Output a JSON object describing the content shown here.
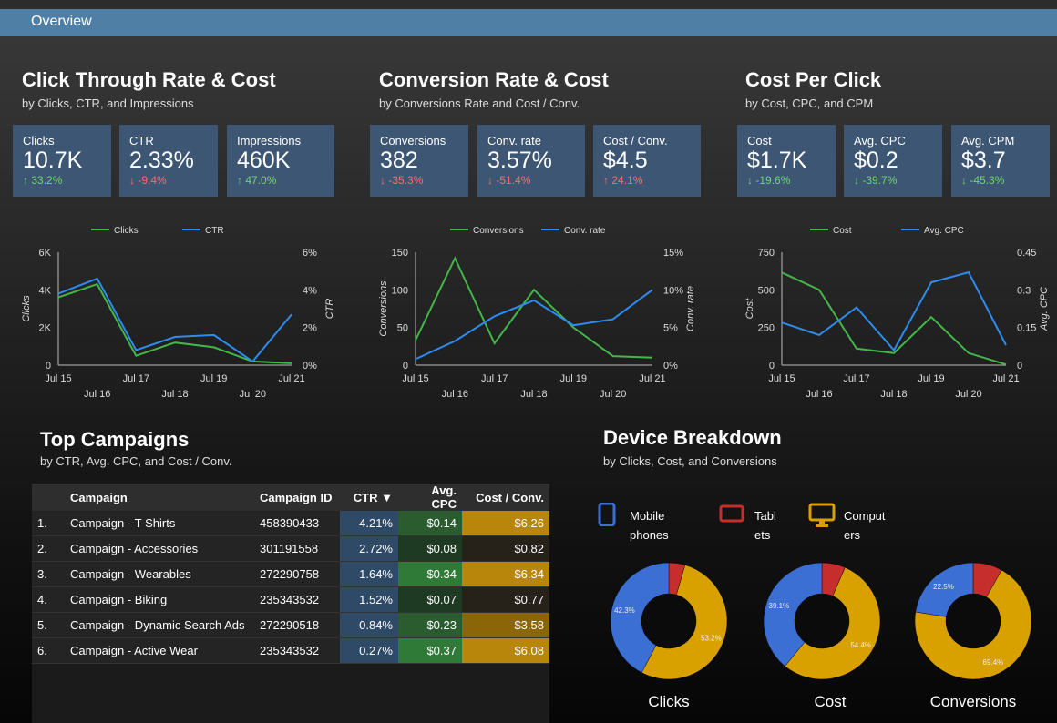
{
  "nav": {
    "title": "Overview"
  },
  "sections": {
    "ctr": {
      "title": "Click Through Rate & Cost",
      "subtitle": "by Clicks, CTR, and Impressions"
    },
    "conv": {
      "title": "Conversion Rate & Cost",
      "subtitle": "by Conversions Rate and Cost / Conv."
    },
    "cpc": {
      "title": "Cost Per Click",
      "subtitle": "by Cost, CPC, and CPM"
    },
    "campaigns": {
      "title": "Top Campaigns",
      "subtitle": "by CTR, Avg. CPC, and Cost / Conv."
    },
    "device": {
      "title": "Device Breakdown",
      "subtitle": "by Clicks, Cost, and Conversions"
    }
  },
  "kpis": [
    {
      "label": "Clicks",
      "value": "10.7K",
      "delta": "33.2%",
      "arrow": "↑",
      "dir": "up"
    },
    {
      "label": "CTR",
      "value": "2.33%",
      "delta": "-9.4%",
      "arrow": "↓",
      "dir": "down"
    },
    {
      "label": "Impressions",
      "value": "460K",
      "delta": "47.0%",
      "arrow": "↑",
      "dir": "up"
    },
    {
      "label": "Conversions",
      "value": "382",
      "delta": "-35.3%",
      "arrow": "↓",
      "dir": "down"
    },
    {
      "label": "Conv. rate",
      "value": "3.57%",
      "delta": "-51.4%",
      "arrow": "↓",
      "dir": "down"
    },
    {
      "label": "Cost / Conv.",
      "value": "$4.5",
      "delta": "24.1%",
      "arrow": "↑",
      "dir": "down"
    },
    {
      "label": "Cost",
      "value": "$1.7K",
      "delta": "-19.6%",
      "arrow": "↓",
      "dir": "up"
    },
    {
      "label": "Avg. CPC",
      "value": "$0.2",
      "delta": "-39.7%",
      "arrow": "↓",
      "dir": "up"
    },
    {
      "label": "Avg. CPM",
      "value": "$3.7",
      "delta": "-45.3%",
      "arrow": "↓",
      "dir": "up"
    }
  ],
  "colors": {
    "green": "#43b649",
    "blue": "#2d8cf0",
    "mobile": "#3b6fd3",
    "tablets": "#c62d2d",
    "computers": "#d9a100"
  },
  "chart_data": [
    {
      "type": "line",
      "legend": [
        "Clicks",
        "CTR"
      ],
      "x": [
        "Jul 15",
        "Jul 16",
        "Jul 17",
        "Jul 18",
        "Jul 19",
        "Jul 20",
        "Jul 21"
      ],
      "series": [
        {
          "name": "Clicks",
          "axis": "left",
          "values": [
            3600,
            4300,
            500,
            1200,
            950,
            200,
            100
          ]
        },
        {
          "name": "CTR",
          "axis": "right",
          "values": [
            3.8,
            4.6,
            0.8,
            1.5,
            1.6,
            0.2,
            2.7
          ]
        }
      ],
      "ylabel": "Clicks",
      "y2label": "CTR",
      "ylim": [
        0,
        6000
      ],
      "y2lim": [
        0,
        6
      ],
      "yticks": [
        "0",
        "2K",
        "4K",
        "6K"
      ],
      "y2ticks": [
        "0%",
        "2%",
        "4%",
        "6%"
      ]
    },
    {
      "type": "line",
      "legend": [
        "Conversions",
        "Conv. rate"
      ],
      "x": [
        "Jul 15",
        "Jul 16",
        "Jul 17",
        "Jul 18",
        "Jul 19",
        "Jul 20",
        "Jul 21"
      ],
      "series": [
        {
          "name": "Conversions",
          "axis": "left",
          "values": [
            33,
            142,
            29,
            100,
            50,
            12,
            10
          ]
        },
        {
          "name": "Conv. rate",
          "axis": "right",
          "values": [
            0.8,
            3.2,
            6.5,
            8.6,
            5.3,
            6.1,
            10.0
          ]
        }
      ],
      "ylabel": "Conversions",
      "y2label": "Conv. rate",
      "ylim": [
        0,
        150
      ],
      "y2lim": [
        0,
        15
      ],
      "yticks": [
        "0",
        "50",
        "100",
        "150"
      ],
      "y2ticks": [
        "0%",
        "5%",
        "10%",
        "15%"
      ]
    },
    {
      "type": "line",
      "legend": [
        "Cost",
        "Avg. CPC"
      ],
      "x": [
        "Jul 15",
        "Jul 16",
        "Jul 17",
        "Jul 18",
        "Jul 19",
        "Jul 20",
        "Jul 21"
      ],
      "series": [
        {
          "name": "Cost",
          "axis": "left",
          "values": [
            615,
            500,
            110,
            80,
            320,
            80,
            5
          ]
        },
        {
          "name": "Avg. CPC",
          "axis": "right",
          "values": [
            0.17,
            0.12,
            0.23,
            0.06,
            0.33,
            0.37,
            0.08
          ]
        }
      ],
      "ylabel": "Cost",
      "y2label": "Avg. CPC",
      "ylim": [
        0,
        750
      ],
      "y2lim": [
        0,
        0.45
      ],
      "yticks": [
        "0",
        "250",
        "500",
        "750"
      ],
      "y2ticks": [
        "0",
        "0.15",
        "0.3",
        "0.45"
      ]
    },
    {
      "type": "pie",
      "title": "Clicks",
      "slices": [
        {
          "name": "Mobile phones",
          "value": 42.3,
          "label": "42.3%"
        },
        {
          "name": "Tablets",
          "value": 4.5,
          "label": ""
        },
        {
          "name": "Computers",
          "value": 53.2,
          "label": "53.2%"
        }
      ]
    },
    {
      "type": "pie",
      "title": "Cost",
      "slices": [
        {
          "name": "Mobile phones",
          "value": 39.1,
          "label": "39.1%"
        },
        {
          "name": "Tablets",
          "value": 6.5,
          "label": ""
        },
        {
          "name": "Computers",
          "value": 54.4,
          "label": "54.4%"
        }
      ]
    },
    {
      "type": "pie",
      "title": "Conversions",
      "slices": [
        {
          "name": "Mobile phones",
          "value": 22.5,
          "label": "22.5%"
        },
        {
          "name": "Tablets",
          "value": 8.1,
          "label": ""
        },
        {
          "name": "Computers",
          "value": 69.4,
          "label": "69.4%"
        }
      ]
    }
  ],
  "device_legend": [
    {
      "label1": "Mobile",
      "label2": "phones",
      "icon": "mobile-phone-icon"
    },
    {
      "label1": "Tabl",
      "label2": "ets",
      "icon": "tablet-icon"
    },
    {
      "label1": "Comput",
      "label2": "ers",
      "icon": "computer-icon"
    }
  ],
  "table": {
    "headers": [
      "Campaign",
      "Campaign ID",
      "CTR ▼",
      "Avg. CPC",
      "Cost / Conv."
    ],
    "rows": [
      {
        "idx": "1.",
        "name": "Campaign - T-Shirts",
        "id": "458390433",
        "ctr": "4.21%",
        "cpc": "$0.14",
        "cost": "$6.26"
      },
      {
        "idx": "2.",
        "name": "Campaign - Accessories",
        "id": "301191558",
        "ctr": "2.72%",
        "cpc": "$0.08",
        "cost": "$0.82"
      },
      {
        "idx": "3.",
        "name": "Campaign - Wearables",
        "id": "272290758",
        "ctr": "1.64%",
        "cpc": "$0.34",
        "cost": "$6.34"
      },
      {
        "idx": "4.",
        "name": "Campaign - Biking",
        "id": "235343532",
        "ctr": "1.52%",
        "cpc": "$0.07",
        "cost": "$0.77"
      },
      {
        "idx": "5.",
        "name": "Campaign - Dynamic Search Ads",
        "id": "272290518",
        "ctr": "0.84%",
        "cpc": "$0.23",
        "cost": "$3.58"
      },
      {
        "idx": "6.",
        "name": "Campaign - Active Wear",
        "id": "235343532",
        "ctr": "0.27%",
        "cpc": "$0.37",
        "cost": "$6.08"
      }
    ]
  }
}
